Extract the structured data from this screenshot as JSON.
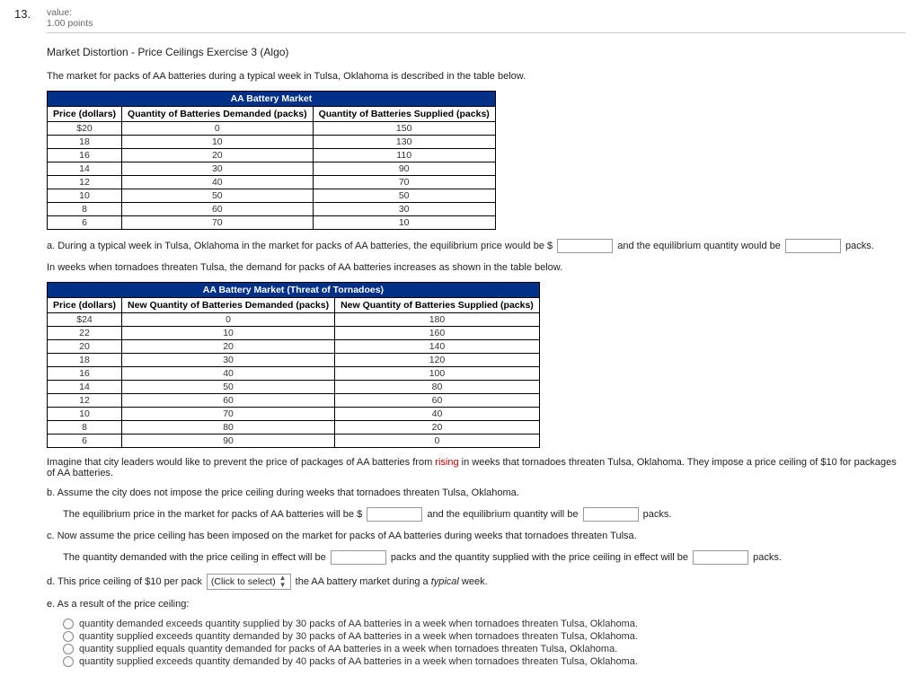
{
  "question_number": "13.",
  "meta": {
    "value_label": "value:",
    "points": "1.00 points"
  },
  "title": "Market Distortion - Price Ceilings Exercise 3 (Algo)",
  "intro": "The market for packs of AA batteries during a typical week in Tulsa, Oklahoma is described in the table below.",
  "table1": {
    "market_head": "AA Battery Market",
    "cols": [
      "Price (dollars)",
      "Quantity of Batteries Demanded (packs)",
      "Quantity of Batteries Supplied (packs)"
    ],
    "rows": [
      [
        "$20",
        "0",
        "150"
      ],
      [
        "18",
        "10",
        "130"
      ],
      [
        "16",
        "20",
        "110"
      ],
      [
        "14",
        "30",
        "90"
      ],
      [
        "12",
        "40",
        "70"
      ],
      [
        "10",
        "50",
        "50"
      ],
      [
        "8",
        "60",
        "30"
      ],
      [
        "6",
        "70",
        "10"
      ]
    ]
  },
  "a": {
    "pre": "a. During a typical week in Tulsa, Oklahoma in the market for packs of AA batteries, the equilibrium price would be $",
    "mid": " and the equilibrium quantity would be ",
    "post": " packs."
  },
  "threat_intro": "In weeks when tornadoes threaten Tulsa, the demand for packs of AA batteries increases as shown in the table below.",
  "table2": {
    "market_head": "AA Battery Market (Threat of Tornadoes)",
    "cols": [
      "Price (dollars)",
      "New Quantity of Batteries Demanded (packs)",
      "New Quantity of Batteries Supplied (packs)"
    ],
    "rows": [
      [
        "$24",
        "0",
        "180"
      ],
      [
        "22",
        "10",
        "160"
      ],
      [
        "20",
        "20",
        "140"
      ],
      [
        "18",
        "30",
        "120"
      ],
      [
        "16",
        "40",
        "100"
      ],
      [
        "14",
        "50",
        "80"
      ],
      [
        "12",
        "60",
        "60"
      ],
      [
        "10",
        "70",
        "40"
      ],
      [
        "8",
        "80",
        "20"
      ],
      [
        "6",
        "90",
        "0"
      ]
    ]
  },
  "imagine": {
    "pre": "Imagine that city leaders would like to prevent the price of packages of AA batteries from ",
    "rising": "rising",
    "post": " in weeks that tornadoes threaten Tulsa, Oklahoma. They impose a price ceiling of $10 for packages of AA batteries."
  },
  "b": {
    "line": "b. Assume the city does not impose the price ceiling during weeks that tornadoes threaten Tulsa, Oklahoma.",
    "sub_pre": "The equilibrium price in the market for packs of AA batteries will be $",
    "sub_mid": " and the equilibrium quantity will be ",
    "sub_post": " packs."
  },
  "c": {
    "line": "c. Now assume the price ceiling has been imposed on the market for packs of AA batteries during weeks that tornadoes threaten Tulsa.",
    "sub_pre": "The quantity demanded with the price ceiling in effect will be ",
    "sub_mid": " packs and the quantity supplied with the price ceiling in effect will be ",
    "sub_post": " packs."
  },
  "d": {
    "pre": "d. This price ceiling of $10 per pack ",
    "select_label": "(Click to select)",
    "mid": " the AA battery market during a ",
    "typical": "typical",
    "post": " week."
  },
  "e": {
    "line": "e. As a result of the price ceiling:",
    "options": [
      "quantity demanded exceeds quantity supplied by 30 packs of AA batteries in a week when tornadoes threaten Tulsa, Oklahoma.",
      "quantity supplied exceeds quantity demanded by 30 packs of AA batteries in a week when tornadoes threaten Tulsa, Oklahoma.",
      "quantity supplied equals quantity demanded for packs of AA batteries in a week when tornadoes threaten Tulsa, Oklahoma.",
      "quantity supplied exceeds quantity demanded by 40 packs of AA batteries in a week when tornadoes threaten Tulsa, Oklahoma."
    ]
  }
}
